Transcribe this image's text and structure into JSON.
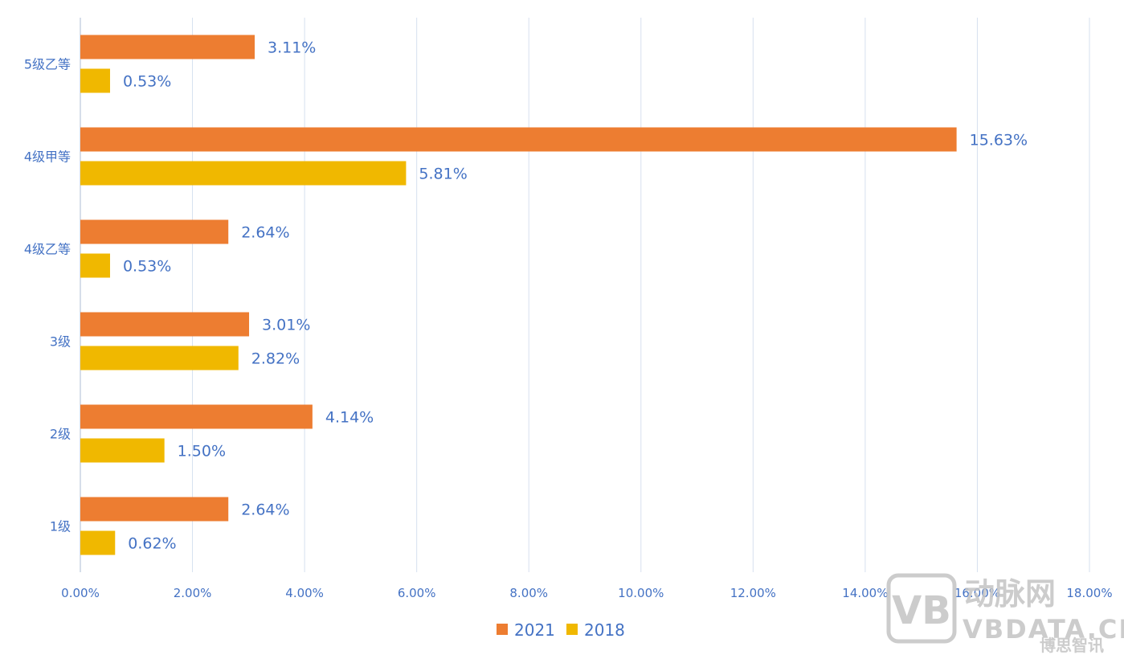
{
  "chart_data": {
    "type": "bar",
    "orientation": "horizontal",
    "categories": [
      "5级乙等",
      "4级甲等",
      "4级乙等",
      "3级",
      "2级",
      "1级"
    ],
    "series": [
      {
        "name": "2021",
        "color": "#ed7d31",
        "values": [
          3.11,
          15.63,
          2.64,
          3.01,
          4.14,
          2.64
        ],
        "labels": [
          "3.11%",
          "15.63%",
          "2.64%",
          "3.01%",
          "4.14%",
          "2.64%"
        ]
      },
      {
        "name": "2018",
        "color": "#f0b800",
        "values": [
          0.53,
          5.81,
          0.53,
          2.82,
          1.5,
          0.62
        ],
        "labels": [
          "0.53%",
          "5.81%",
          "0.53%",
          "2.82%",
          "1.50%",
          "0.62%"
        ]
      }
    ],
    "xlim": [
      0,
      18
    ],
    "x_ticks": [
      "0.00%",
      "2.00%",
      "4.00%",
      "6.00%",
      "8.00%",
      "10.00%",
      "12.00%",
      "14.00%",
      "16.00%",
      "18.00%"
    ],
    "grid": true,
    "legend_position": "bottom-center"
  },
  "watermark": {
    "logo": "VB",
    "name": "动脉网",
    "site": "VBDATA.CN",
    "partner": "博思智讯",
    "color": "#c4c4c4"
  }
}
